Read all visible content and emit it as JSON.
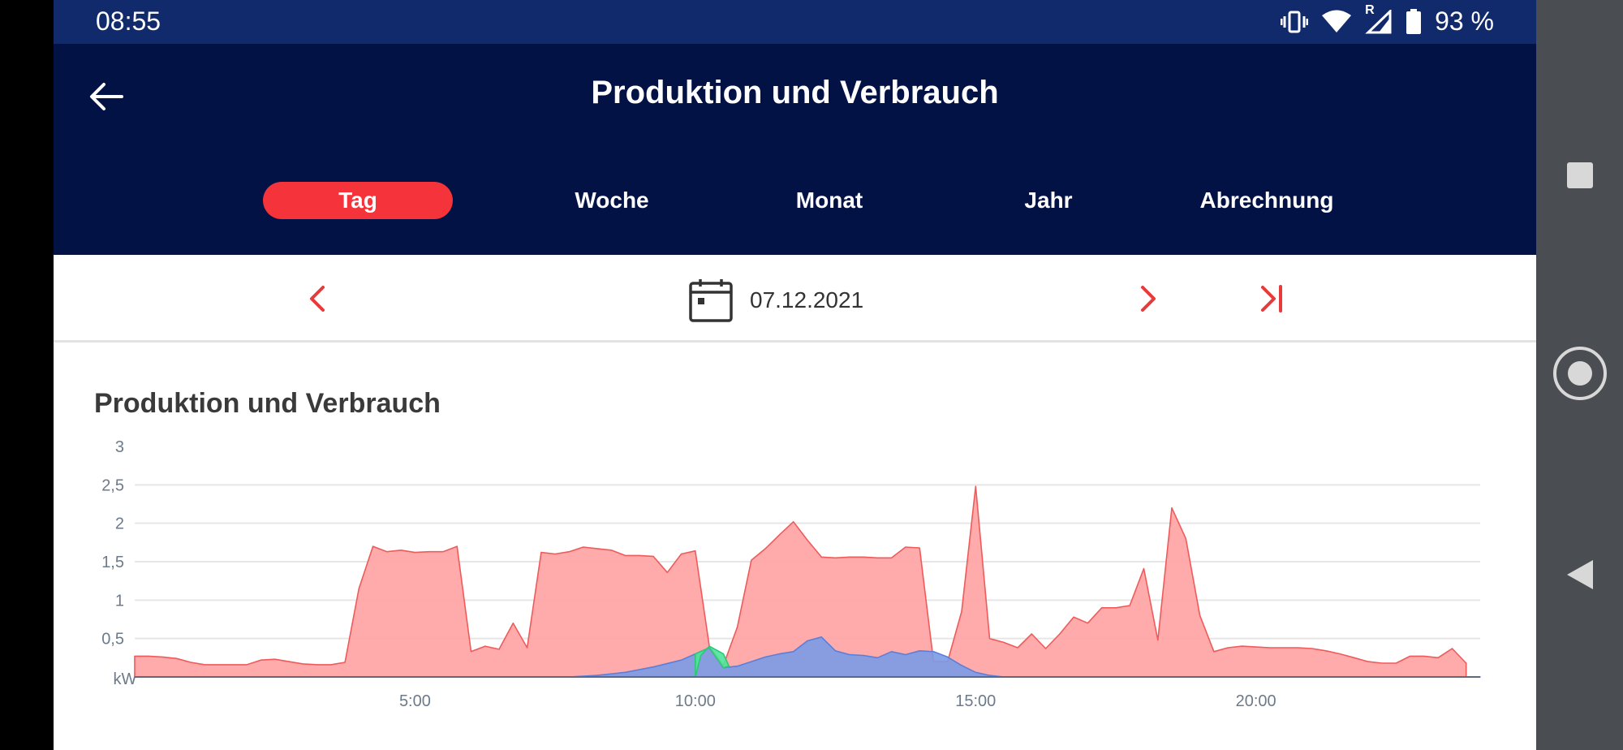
{
  "status_bar": {
    "time": "08:55",
    "battery": "93 %",
    "roaming": "R"
  },
  "header": {
    "title": "Produktion und Verbrauch"
  },
  "tabs": [
    {
      "label": "Tag",
      "active": true
    },
    {
      "label": "Woche",
      "active": false
    },
    {
      "label": "Monat",
      "active": false
    },
    {
      "label": "Jahr",
      "active": false
    },
    {
      "label": "Abrechnung",
      "active": false
    }
  ],
  "date_nav": {
    "date": "07.12.2021"
  },
  "colors": {
    "accent": "#f4343a",
    "header": "#021245",
    "status": "#112a6b",
    "consumption": "#ffa6a6",
    "production": "#7b9ae6",
    "surplus": "#4fe39a"
  },
  "chart_data": {
    "type": "area",
    "title": "Produktion und Verbrauch",
    "ylabel": "kW",
    "xlim": [
      0,
      24
    ],
    "ylim": [
      0,
      3
    ],
    "yticks": [
      "3",
      "2,5",
      "2",
      "1,5",
      "1",
      "0,5"
    ],
    "xticks": [
      {
        "x": 5,
        "label": "5:00"
      },
      {
        "x": 10,
        "label": "10:00"
      },
      {
        "x": 15,
        "label": "15:00"
      },
      {
        "x": 20,
        "label": "20:00"
      }
    ],
    "series": [
      {
        "key": "consumption",
        "points": [
          [
            0,
            0.27
          ],
          [
            0.25,
            0.27
          ],
          [
            0.5,
            0.26
          ],
          [
            0.75,
            0.24
          ],
          [
            1,
            0.19
          ],
          [
            1.25,
            0.16
          ],
          [
            1.5,
            0.16
          ],
          [
            1.75,
            0.16
          ],
          [
            2,
            0.16
          ],
          [
            2.25,
            0.22
          ],
          [
            2.5,
            0.23
          ],
          [
            2.75,
            0.2
          ],
          [
            3,
            0.17
          ],
          [
            3.25,
            0.16
          ],
          [
            3.5,
            0.16
          ],
          [
            3.75,
            0.19
          ],
          [
            4,
            1.15
          ],
          [
            4.25,
            1.7
          ],
          [
            4.5,
            1.63
          ],
          [
            4.75,
            1.65
          ],
          [
            5,
            1.62
          ],
          [
            5.25,
            1.63
          ],
          [
            5.5,
            1.63
          ],
          [
            5.75,
            1.7
          ],
          [
            6,
            0.33
          ],
          [
            6.25,
            0.4
          ],
          [
            6.5,
            0.36
          ],
          [
            6.75,
            0.7
          ],
          [
            7,
            0.38
          ],
          [
            7.25,
            1.62
          ],
          [
            7.5,
            1.6
          ],
          [
            7.75,
            1.63
          ],
          [
            8,
            1.69
          ],
          [
            8.25,
            1.67
          ],
          [
            8.5,
            1.65
          ],
          [
            8.75,
            1.58
          ],
          [
            9,
            1.58
          ],
          [
            9.25,
            1.57
          ],
          [
            9.5,
            1.36
          ],
          [
            9.75,
            1.6
          ],
          [
            10,
            1.64
          ],
          [
            10.25,
            0.4
          ],
          [
            10.5,
            0.15
          ],
          [
            10.75,
            0.65
          ],
          [
            11,
            1.52
          ],
          [
            11.25,
            1.67
          ],
          [
            11.5,
            1.85
          ],
          [
            11.75,
            2.02
          ],
          [
            12,
            1.78
          ],
          [
            12.25,
            1.56
          ],
          [
            12.5,
            1.55
          ],
          [
            12.75,
            1.56
          ],
          [
            13,
            1.56
          ],
          [
            13.25,
            1.55
          ],
          [
            13.5,
            1.55
          ],
          [
            13.75,
            1.69
          ],
          [
            14,
            1.68
          ],
          [
            14.25,
            0.2
          ],
          [
            14.5,
            0.2
          ],
          [
            14.75,
            0.85
          ],
          [
            15,
            2.48
          ],
          [
            15.25,
            0.5
          ],
          [
            15.5,
            0.45
          ],
          [
            15.75,
            0.38
          ],
          [
            16,
            0.56
          ],
          [
            16.25,
            0.37
          ],
          [
            16.5,
            0.56
          ],
          [
            16.75,
            0.78
          ],
          [
            17,
            0.7
          ],
          [
            17.25,
            0.9
          ],
          [
            17.5,
            0.9
          ],
          [
            17.75,
            0.93
          ],
          [
            18,
            1.41
          ],
          [
            18.25,
            0.48
          ],
          [
            18.5,
            2.2
          ],
          [
            18.75,
            1.8
          ],
          [
            19,
            0.8
          ],
          [
            19.25,
            0.33
          ],
          [
            19.5,
            0.38
          ],
          [
            19.75,
            0.4
          ],
          [
            20,
            0.39
          ],
          [
            20.25,
            0.38
          ],
          [
            20.5,
            0.38
          ],
          [
            20.75,
            0.38
          ],
          [
            21,
            0.37
          ],
          [
            21.25,
            0.34
          ],
          [
            21.5,
            0.3
          ],
          [
            21.75,
            0.25
          ],
          [
            22,
            0.2
          ],
          [
            22.25,
            0.18
          ],
          [
            22.5,
            0.18
          ],
          [
            22.75,
            0.27
          ],
          [
            23,
            0.27
          ],
          [
            23.25,
            0.25
          ],
          [
            23.5,
            0.37
          ],
          [
            23.75,
            0.18
          ]
        ]
      },
      {
        "key": "production",
        "points": [
          [
            0,
            0
          ],
          [
            7.75,
            0
          ],
          [
            8.25,
            0.02
          ],
          [
            8.75,
            0.06
          ],
          [
            9.25,
            0.13
          ],
          [
            9.75,
            0.22
          ],
          [
            10,
            0.3
          ],
          [
            10.25,
            0.38
          ],
          [
            10.5,
            0.12
          ],
          [
            10.75,
            0.14
          ],
          [
            11,
            0.2
          ],
          [
            11.25,
            0.26
          ],
          [
            11.5,
            0.3
          ],
          [
            11.75,
            0.33
          ],
          [
            12,
            0.47
          ],
          [
            12.25,
            0.52
          ],
          [
            12.5,
            0.34
          ],
          [
            12.75,
            0.29
          ],
          [
            13,
            0.28
          ],
          [
            13.25,
            0.25
          ],
          [
            13.5,
            0.33
          ],
          [
            13.75,
            0.29
          ],
          [
            14,
            0.34
          ],
          [
            14.25,
            0.33
          ],
          [
            14.5,
            0.26
          ],
          [
            14.75,
            0.15
          ],
          [
            15,
            0.06
          ],
          [
            15.25,
            0.02
          ],
          [
            15.5,
            0
          ],
          [
            24,
            0
          ]
        ]
      },
      {
        "key": "surplus",
        "points": [
          [
            10,
            0
          ],
          [
            10.1,
            0.28
          ],
          [
            10.25,
            0.4
          ],
          [
            10.5,
            0.3
          ],
          [
            10.6,
            0.14
          ],
          [
            10.5,
            0.12
          ],
          [
            10.25,
            0.38
          ],
          [
            10,
            0.3
          ]
        ]
      }
    ]
  }
}
